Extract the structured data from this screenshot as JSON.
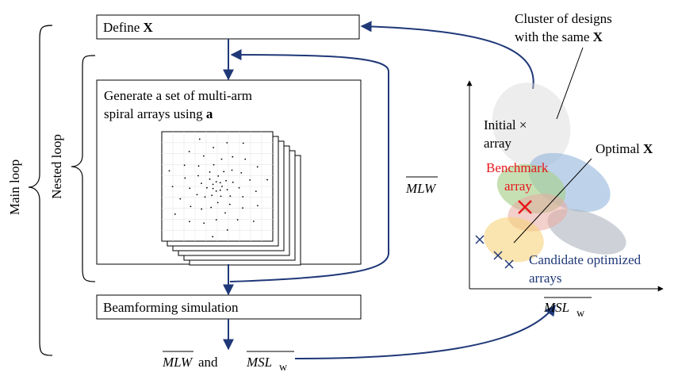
{
  "boxes": {
    "define": {
      "prefix": "Define",
      "symbol": "X"
    },
    "generate": {
      "line1": "Generate a set of multi-arm",
      "line2_prefix": "spiral arrays using",
      "line2_symbol": "a"
    },
    "beamforming": {
      "label": "Beamforming simulation"
    }
  },
  "braces": {
    "main_loop": "Main loop",
    "nested_loop": "Nested loop"
  },
  "outputs": {
    "mlw": "MLW",
    "and": "and",
    "msl": "MSL",
    "msl_sub": "w"
  },
  "plot": {
    "cluster_label_line1": "Cluster of designs",
    "cluster_label_line2_prefix": "with the same",
    "cluster_label_line2_symbol": "X",
    "initial_line1": "Initial",
    "initial_marker": "×",
    "initial_line2": "array",
    "optimal_prefix": "Optimal",
    "optimal_symbol": "X",
    "benchmark_line1": "Benchmark",
    "benchmark_line2": "array",
    "candidate_line1": "Candidate optimized",
    "candidate_line2": "arrays",
    "ylabel": "MLW",
    "xlabel": "MSL",
    "xlabel_sub": "w",
    "colors": {
      "benchmark": "#e8161b",
      "candidate": "#1f3878",
      "arrow": "#1f3878"
    }
  }
}
